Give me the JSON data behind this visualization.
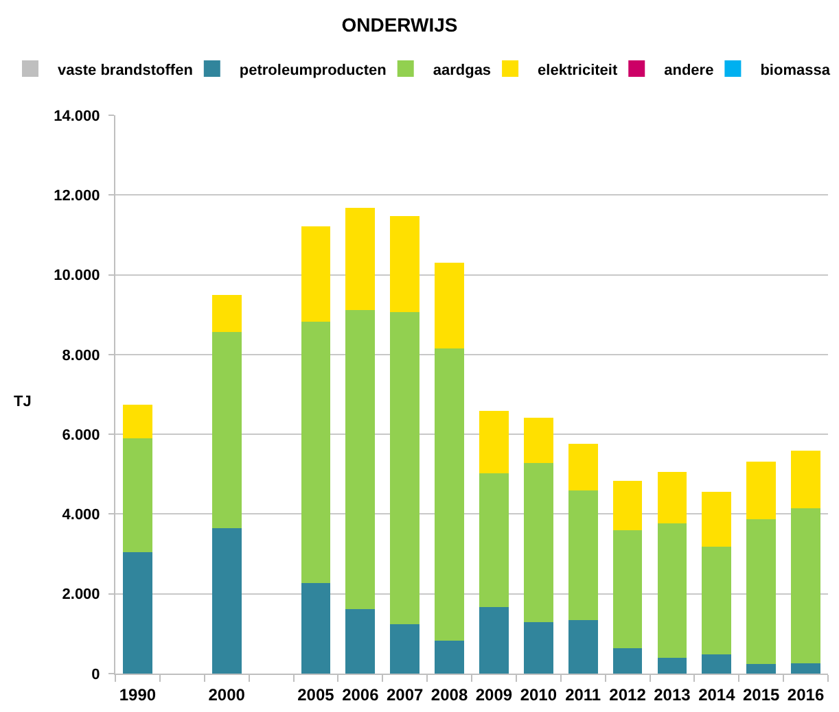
{
  "chart_data": {
    "type": "bar",
    "title": "ONDERWIJS",
    "ylabel": "TJ",
    "stacked": true,
    "grid": "y",
    "legend": "top",
    "categories": [
      "1990",
      null,
      "2000",
      null,
      "2005",
      "2006",
      "2007",
      "2008",
      "2009",
      "2010",
      "2011",
      "2012",
      "2013",
      "2014",
      "2015",
      "2016"
    ],
    "ylim": [
      0,
      14000
    ],
    "yticks": [
      0,
      {
        "value": 2000,
        "label": "2.000"
      },
      {
        "value": 4000,
        "label": "4.000"
      },
      {
        "value": 6000,
        "label": "6.000"
      },
      {
        "value": 8000,
        "label": "8.000"
      },
      {
        "value": 10000,
        "label": "10.000"
      },
      {
        "value": 12000,
        "label": "12.000"
      },
      {
        "value": 14000,
        "label": "14.000"
      }
    ],
    "series": [
      {
        "name": "vaste brandstoffen",
        "color": "#bfbfbf",
        "values": [
          0,
          null,
          0,
          null,
          0,
          0,
          0,
          0,
          0,
          0,
          0,
          0,
          0,
          0,
          0,
          0
        ]
      },
      {
        "name": "petroleumproducten",
        "color": "#31859c",
        "values": [
          3050,
          null,
          3650,
          null,
          2270,
          1620,
          1240,
          830,
          1660,
          1290,
          1350,
          640,
          390,
          490,
          240,
          250
        ]
      },
      {
        "name": "aardgas",
        "color": "#92d050",
        "values": [
          2850,
          null,
          4920,
          null,
          6550,
          7500,
          7820,
          7330,
          3360,
          3990,
          3240,
          2950,
          3370,
          2690,
          3630,
          3890
        ]
      },
      {
        "name": "elektriciteit",
        "color": "#ffe000",
        "values": [
          850,
          null,
          920,
          null,
          2390,
          2550,
          2420,
          2140,
          1560,
          1140,
          1180,
          1250,
          1290,
          1370,
          1440,
          1450
        ]
      },
      {
        "name": "andere",
        "color": "#cc0066",
        "values": [
          0,
          null,
          0,
          null,
          0,
          0,
          0,
          0,
          0,
          0,
          0,
          0,
          0,
          0,
          0,
          0
        ]
      },
      {
        "name": "biomassa",
        "color": "#00b0f0",
        "values": [
          0,
          null,
          0,
          null,
          0,
          0,
          0,
          0,
          0,
          0,
          0,
          0,
          0,
          0,
          0,
          0
        ]
      }
    ]
  }
}
